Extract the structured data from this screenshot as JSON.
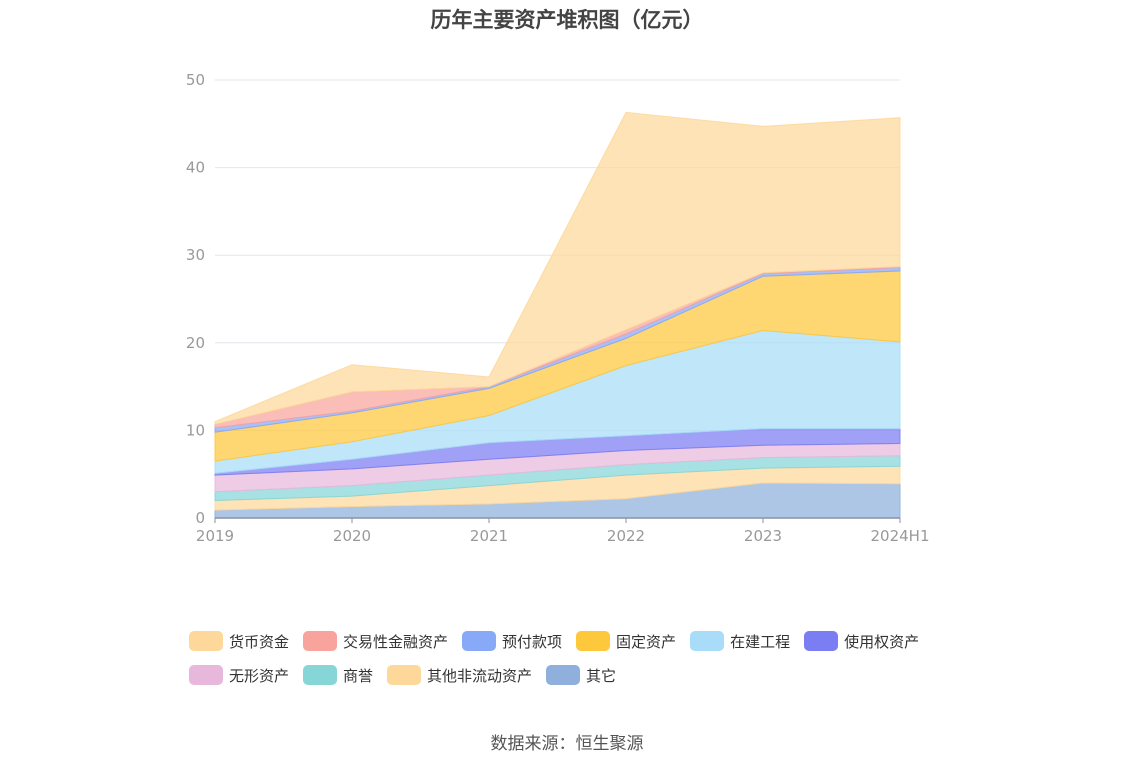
{
  "title": "历年主要资产堆积图（亿元）",
  "source": "数据来源：恒生聚源",
  "chart_data": {
    "type": "area",
    "stacked": true,
    "x": [
      "2019",
      "2020",
      "2021",
      "2022",
      "2023",
      "2024H1"
    ],
    "ylim": [
      0,
      50
    ],
    "yticks": [
      0,
      10,
      20,
      30,
      40,
      50
    ],
    "grid": true,
    "legend_position": "bottom",
    "series": [
      {
        "name": "其它",
        "color": "#8fb0dc",
        "values": [
          0.9,
          1.3,
          1.6,
          2.2,
          4.0,
          3.9
        ]
      },
      {
        "name": "其他非流动资产",
        "color": "#fdd89a",
        "values": [
          1.1,
          1.2,
          2.1,
          2.7,
          1.7,
          2.0
        ]
      },
      {
        "name": "商誉",
        "color": "#86d6d8",
        "values": [
          1.0,
          1.2,
          1.2,
          1.2,
          1.2,
          1.2
        ]
      },
      {
        "name": "无形资产",
        "color": "#e8b8dc",
        "values": [
          1.9,
          1.9,
          1.8,
          1.6,
          1.4,
          1.4
        ]
      },
      {
        "name": "使用权资产",
        "color": "#7b7df2",
        "values": [
          0.2,
          1.1,
          1.9,
          1.7,
          1.9,
          1.7
        ]
      },
      {
        "name": "在建工程",
        "color": "#a8dcf8",
        "values": [
          1.4,
          2.0,
          3.1,
          8.0,
          11.2,
          9.9
        ]
      },
      {
        "name": "固定资产",
        "color": "#fdc83c",
        "values": [
          3.3,
          3.3,
          3.1,
          3.1,
          6.2,
          8.1
        ]
      },
      {
        "name": "预付款项",
        "color": "#88a8f8",
        "values": [
          0.5,
          0.2,
          0.2,
          0.5,
          0.3,
          0.4
        ]
      },
      {
        "name": "交易性金融资产",
        "color": "#f8a49c",
        "values": [
          0.4,
          2.2,
          0.0,
          0.5,
          0.1,
          0.1
        ]
      },
      {
        "name": "货币资金",
        "color": "#fdd89a",
        "values": [
          0.3,
          3.1,
          1.1,
          24.8,
          16.7,
          17.0
        ]
      }
    ],
    "legend_order": [
      "货币资金",
      "交易性金融资产",
      "预付款项",
      "固定资产",
      "在建工程",
      "使用权资产",
      "无形资产",
      "商誉",
      "其他非流动资产",
      "其它"
    ]
  }
}
